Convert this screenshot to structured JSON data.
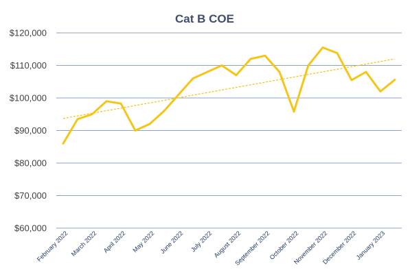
{
  "chart_data": {
    "type": "line",
    "title": "Cat B COE",
    "xlabel": "",
    "ylabel": "",
    "ylim": [
      60000,
      120000
    ],
    "y_ticks": [
      60000,
      70000,
      80000,
      90000,
      100000,
      110000,
      120000
    ],
    "y_tick_labels": [
      "$60,000",
      "$70,000",
      "$80,000",
      "$90,000",
      "$100,000",
      "$110,000",
      "$120,000"
    ],
    "x_tick_labels": [
      "February 2022",
      "March 2022",
      "April 2022",
      "May 2022",
      "June 2022",
      "July 2022",
      "August 2022",
      "September 2022",
      "October 2022",
      "November 2022",
      "December 2022",
      "January 2023"
    ],
    "grid": true,
    "series": [
      {
        "values": [
          86000,
          93500,
          95000,
          99000,
          98300,
          90000,
          92000,
          96000,
          101000,
          106000,
          108000,
          110000,
          107000,
          112000,
          113000,
          108000,
          95800,
          110000,
          115500,
          113800,
          105500,
          108000,
          102000,
          105600
        ],
        "color": "#f5c518"
      }
    ],
    "trendline": {
      "type": "linear",
      "start": 93700,
      "end": 112000,
      "color": "#f5c518",
      "style": "dashed"
    }
  }
}
